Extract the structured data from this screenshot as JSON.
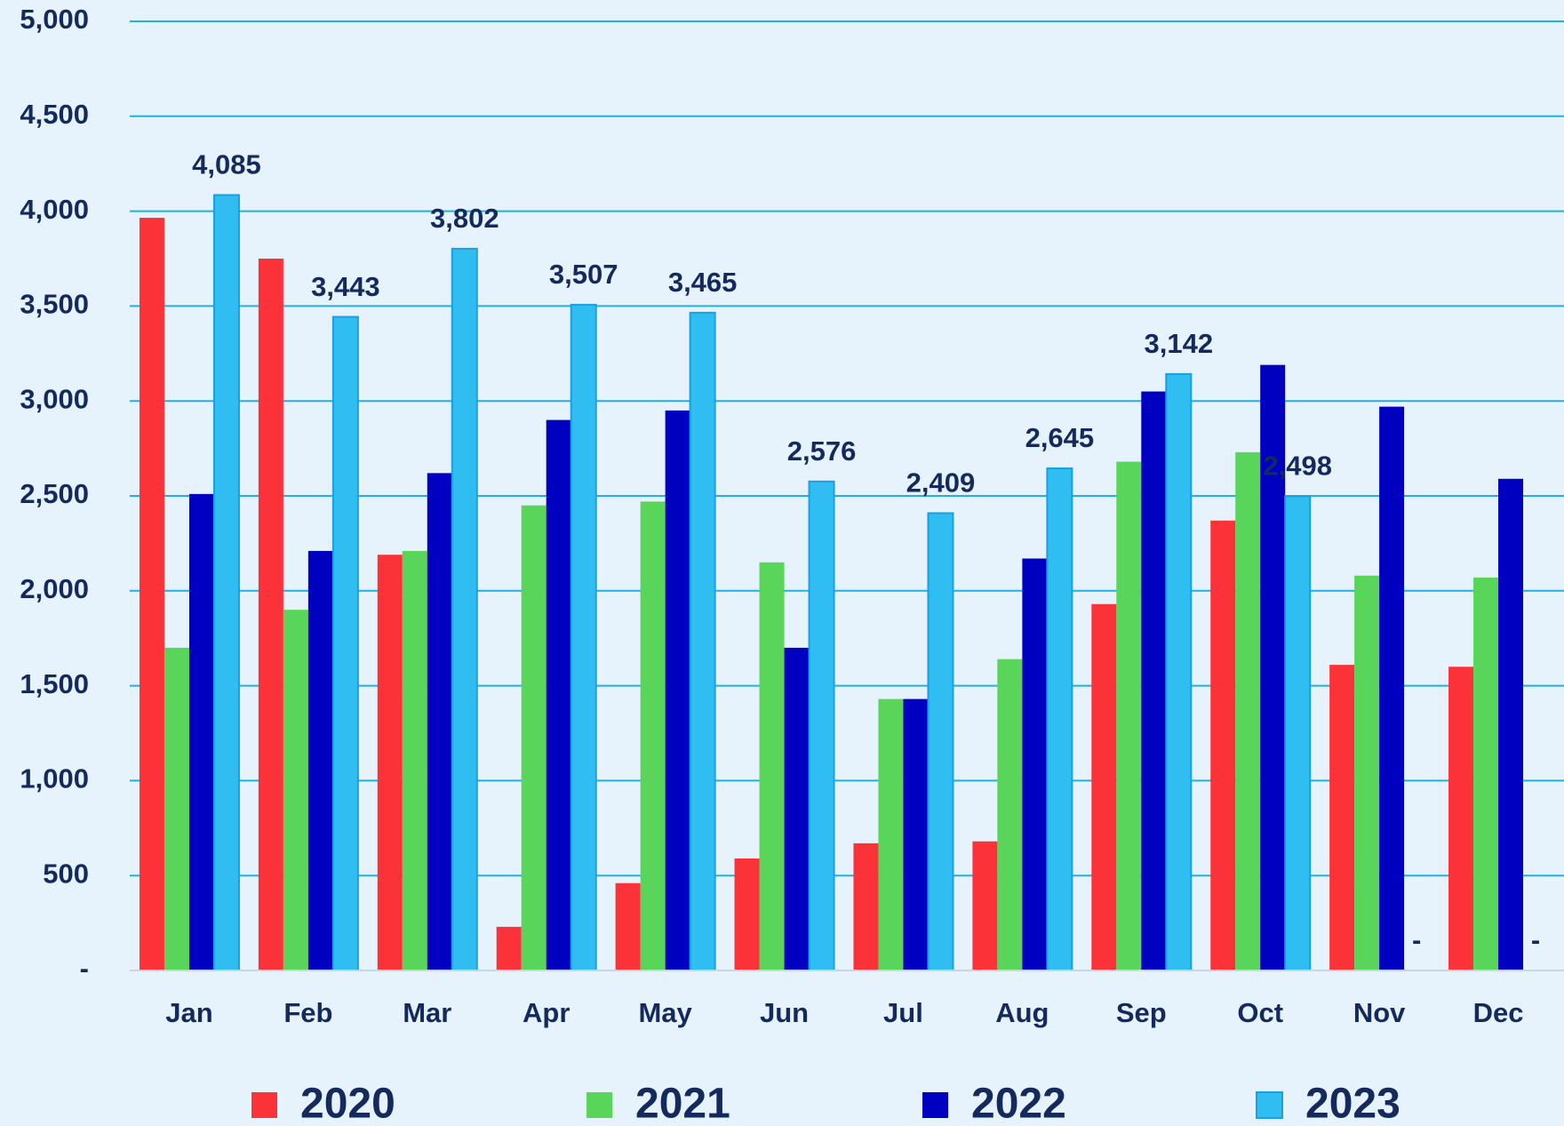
{
  "chart_data": {
    "type": "bar",
    "categories": [
      "Jan",
      "Feb",
      "Mar",
      "Apr",
      "May",
      "Jun",
      "Jul",
      "Aug",
      "Sep",
      "Oct",
      "Nov",
      "Dec"
    ],
    "series": [
      {
        "name": "2020",
        "color": "#fb3237",
        "values": [
          3965,
          3750,
          2190,
          230,
          460,
          590,
          670,
          680,
          1930,
          2370,
          1610,
          1600
        ]
      },
      {
        "name": "2021",
        "color": "#59d55a",
        "values": [
          1700,
          1900,
          2210,
          2450,
          2470,
          2150,
          1430,
          1640,
          2680,
          2730,
          2080,
          2070
        ]
      },
      {
        "name": "2022",
        "color": "#0000c0",
        "values": [
          2510,
          2210,
          2620,
          2900,
          2950,
          1700,
          1430,
          2170,
          3050,
          3190,
          2970,
          2590
        ]
      },
      {
        "name": "2023",
        "color": "#30bdf2",
        "values": [
          4085,
          3443,
          3802,
          3507,
          3465,
          2576,
          2409,
          2645,
          3142,
          2498,
          0,
          0
        ],
        "value_labels": [
          "4,085",
          "3,443",
          "3,802",
          "3,507",
          "3,465",
          "2,576",
          "2,409",
          "2,645",
          "3,142",
          "2,498",
          "-",
          "-"
        ]
      }
    ],
    "ylim": [
      0,
      5000
    ],
    "yticks": [
      {
        "value": 0,
        "label": "-"
      },
      500,
      {
        "value": 1000,
        "label": "1,000"
      },
      {
        "value": 1500,
        "label": "1,500"
      },
      {
        "value": 2000,
        "label": "2,000"
      },
      {
        "value": 2500,
        "label": "2,500"
      },
      {
        "value": 3000,
        "label": "3,000"
      },
      {
        "value": 3500,
        "label": "3,500"
      },
      {
        "value": 4000,
        "label": "4,000"
      },
      {
        "value": 4500,
        "label": "4,500"
      },
      {
        "value": 5000,
        "label": "5,000"
      }
    ],
    "grid": true,
    "legend": "bottom"
  }
}
